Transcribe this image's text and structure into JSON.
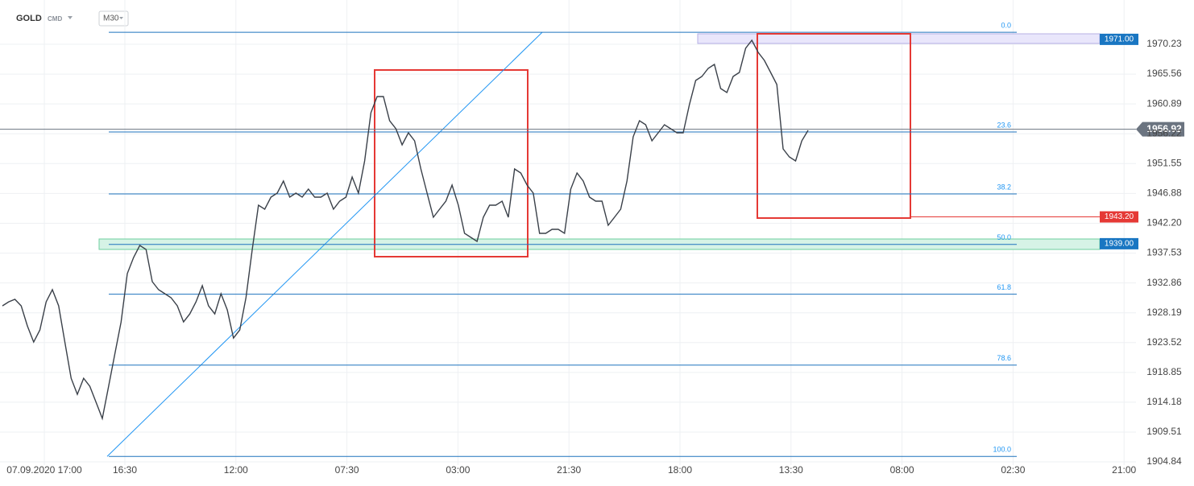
{
  "chart_data": {
    "type": "line",
    "symbol": "GOLD",
    "market": "CMD",
    "interval": "M30",
    "x_labels": [
      "07.09.2020 17:00",
      "16:30",
      "12:00",
      "07:30",
      "03:00",
      "21:30",
      "18:00",
      "13:30",
      "08:00",
      "02:30",
      "21:00"
    ],
    "series": [
      {
        "name": "GOLD",
        "color": "#3a4049",
        "values": [
          1929.28,
          1929.91,
          1930.29,
          1929.28,
          1926.13,
          1923.61,
          1925.5,
          1929.91,
          1931.8,
          1929.28,
          1923.61,
          1917.94,
          1915.42,
          1917.94,
          1916.68,
          1914.16,
          1911.64,
          1916.68,
          1921.72,
          1926.76,
          1934.32,
          1936.84,
          1938.73,
          1938.1,
          1933.06,
          1931.8,
          1931.17,
          1930.54,
          1929.28,
          1926.76,
          1928.02,
          1929.91,
          1932.43,
          1929.28,
          1928.02,
          1931.17,
          1928.65,
          1924.24,
          1925.5,
          1930.54,
          1938.1,
          1945.03,
          1944.4,
          1946.29,
          1946.92,
          1948.81,
          1946.29,
          1946.92,
          1946.29,
          1947.55,
          1946.29,
          1946.29,
          1946.92,
          1944.4,
          1945.66,
          1946.29,
          1949.44,
          1946.92,
          1951.96,
          1959.52,
          1962.04,
          1962.04,
          1958.26,
          1957.0,
          1954.48,
          1956.37,
          1955.11,
          1950.7,
          1946.92,
          1943.14,
          1944.4,
          1945.66,
          1948.18,
          1945.03,
          1940.62,
          1939.99,
          1939.36,
          1943.14,
          1945.03,
          1945.03,
          1945.66,
          1943.14,
          1950.7,
          1950.07,
          1948.18,
          1946.92,
          1940.62,
          1940.62,
          1941.25,
          1941.25,
          1940.62,
          1947.55,
          1950.07,
          1948.81,
          1946.29,
          1945.66,
          1945.66,
          1941.88,
          1943.14,
          1944.4,
          1948.81,
          1955.74,
          1958.26,
          1957.63,
          1955.11,
          1956.37,
          1957.63,
          1957.0,
          1956.37,
          1956.37,
          1960.78,
          1964.56,
          1965.19,
          1966.45,
          1967.08,
          1963.3,
          1962.67,
          1965.19,
          1965.82,
          1969.6,
          1970.86,
          1968.97,
          1967.71,
          1965.82,
          1963.93,
          1953.85,
          1952.59,
          1951.96,
          1955.11,
          1956.75
        ]
      }
    ],
    "ylim": [
      1902.83,
      1977.16
    ],
    "yticks": [
      1970.23,
      1965.56,
      1960.89,
      1956.22,
      1951.55,
      1946.88,
      {
        "value": 1942.2,
        "label": "1942.20"
      },
      1937.53,
      1932.86,
      1928.19,
      1923.52,
      1918.85,
      1914.18,
      1909.51,
      1904.84
    ],
    "grid": true,
    "current_price": 1956.92,
    "price_markers": [
      {
        "value": 1971,
        "label": "1971.00",
        "color": "#1976c2"
      },
      {
        "value": 1943.2,
        "label": "1943.20",
        "color": "#e53935"
      },
      {
        "value": 1939,
        "label": "1939.00",
        "color": "#1976c2"
      }
    ],
    "fib_levels": [
      {
        "level": {
          "value": 0,
          "label": "0.0"
        },
        "price": 1972.1
      },
      {
        "level": 23.6,
        "price": 1956.5
      },
      {
        "level": 38.2,
        "price": 1946.8
      },
      {
        "level": {
          "value": 50,
          "label": "50.0"
        },
        "price": 1938.9
      },
      {
        "level": 61.8,
        "price": 1931.1
      },
      {
        "level": 78.6,
        "price": 1920.0
      },
      {
        "level": {
          "value": 100,
          "label": "100.0"
        },
        "price": 1905.7
      }
    ]
  }
}
